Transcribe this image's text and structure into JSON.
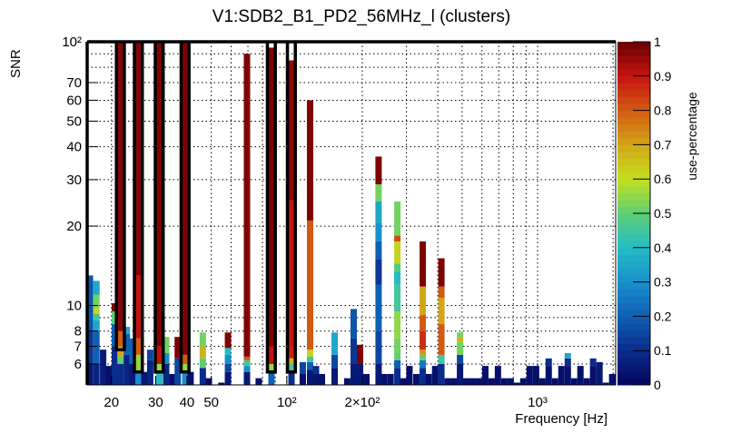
{
  "chart_data": {
    "type": "heatmap",
    "title": "V1:SDB2_B1_PD2_56MHz_l (clusters)",
    "xlabel": "Frequency [Hz]",
    "ylabel": "SNR",
    "zlabel": "use-percentage",
    "xscale": "log",
    "yscale": "log",
    "xlim": [
      16,
      2048
    ],
    "ylim": [
      5,
      100
    ],
    "zlim": [
      0,
      1
    ],
    "grid": true,
    "bin_width_decades": 0.0243,
    "x_ticks": [
      {
        "v": 20,
        "label": "20"
      },
      {
        "v": 30,
        "label": "30"
      },
      {
        "v": 40,
        "label": "40"
      },
      {
        "v": 50,
        "label": "50"
      },
      {
        "v": 100,
        "label": "10²"
      },
      {
        "v": 200,
        "label": "2×10²"
      },
      {
        "v": 1000,
        "label": "10³"
      }
    ],
    "x_grid": [
      20,
      30,
      40,
      50,
      60,
      70,
      80,
      90,
      100,
      200,
      300,
      400,
      500,
      600,
      700,
      800,
      900,
      1000,
      2000
    ],
    "y_ticks": [
      {
        "v": 100,
        "label": "10²"
      },
      {
        "v": 70,
        "label": "70"
      },
      {
        "v": 60,
        "label": "60"
      },
      {
        "v": 50,
        "label": "50"
      },
      {
        "v": 40,
        "label": "40"
      },
      {
        "v": 30,
        "label": "30"
      },
      {
        "v": 20,
        "label": "20"
      },
      {
        "v": 10,
        "label": "10"
      },
      {
        "v": 8,
        "label": "8"
      },
      {
        "v": 7,
        "label": "7"
      },
      {
        "v": 6,
        "label": "6"
      }
    ],
    "y_grid": [
      6,
      7,
      8,
      9,
      10,
      20,
      30,
      40,
      50,
      60,
      70,
      80,
      90
    ],
    "z_ticks": [
      {
        "v": 0,
        "label": "0"
      },
      {
        "v": 0.1,
        "label": "0.1"
      },
      {
        "v": 0.2,
        "label": "0.2"
      },
      {
        "v": 0.3,
        "label": "0.3"
      },
      {
        "v": 0.4,
        "label": "0.4"
      },
      {
        "v": 0.5,
        "label": "0.5"
      },
      {
        "v": 0.6,
        "label": "0.6"
      },
      {
        "v": 0.7,
        "label": "0.7"
      },
      {
        "v": 0.8,
        "label": "0.8"
      },
      {
        "v": 0.9,
        "label": "0.9"
      },
      {
        "v": 1,
        "label": "1"
      }
    ],
    "palette": [
      "#04045e",
      "#0a2c8c",
      "#0f5fb4",
      "#1890cc",
      "#25bcc6",
      "#5dcf73",
      "#c4e01e",
      "#d2a618",
      "#d35a12",
      "#c41410",
      "#6a0000"
    ],
    "columns": [
      {
        "f": 16.4,
        "segs": [
          [
            6,
            0.05
          ],
          [
            8,
            0.12
          ],
          [
            13,
            0.18
          ]
        ]
      },
      {
        "f": 17.4,
        "segs": [
          [
            6,
            0.08
          ],
          [
            8,
            0.2
          ],
          [
            8.8,
            0.35
          ],
          [
            9.3,
            0.45
          ],
          [
            9.8,
            0.62
          ],
          [
            11,
            0.52
          ],
          [
            12.4,
            0.35
          ]
        ]
      },
      {
        "f": 18.5,
        "segs": [
          [
            6.8,
            0.06
          ]
        ]
      },
      {
        "f": 19.5,
        "segs": [
          [
            5.9,
            0.03
          ]
        ]
      },
      {
        "f": 20.6,
        "segs": [
          [
            7,
            0.1
          ],
          [
            8.5,
            0.2
          ],
          [
            9.5,
            0.5
          ],
          [
            10.2,
            0.98
          ]
        ]
      },
      {
        "f": 21.7,
        "segs": [
          [
            6,
            0.1
          ],
          [
            6.4,
            0.5
          ],
          [
            7,
            0.7
          ],
          [
            8,
            0.8
          ],
          [
            100,
            0.97
          ]
        ]
      },
      {
        "f": 23.0,
        "segs": [
          [
            6.5,
            0.08
          ],
          [
            7.8,
            0.2
          ],
          [
            8.3,
            0.35
          ]
        ]
      },
      {
        "f": 24.2,
        "segs": [
          [
            6,
            0.05
          ],
          [
            7.5,
            0.2
          ]
        ]
      },
      {
        "f": 25.6,
        "segs": [
          [
            5.6,
            0.3
          ],
          [
            6.5,
            0.55
          ],
          [
            7.5,
            0.8
          ],
          [
            13,
            0.9
          ],
          [
            100,
            0.97
          ]
        ]
      },
      {
        "f": 27.0,
        "segs": [
          [
            5.6,
            0.05
          ]
        ]
      },
      {
        "f": 28.5,
        "segs": [
          [
            6.2,
            0.08
          ],
          [
            6.8,
            0.15
          ]
        ]
      },
      {
        "f": 31.0,
        "segs": [
          [
            5.6,
            0.4
          ],
          [
            6,
            0.55
          ],
          [
            7,
            0.9
          ],
          [
            100,
            0.98
          ]
        ]
      },
      {
        "f": 33.0,
        "segs": [
          [
            6,
            0.08
          ],
          [
            6.6,
            0.3
          ],
          [
            7.6,
            0.52
          ]
        ]
      },
      {
        "f": 35.0,
        "segs": [
          [
            5.5,
            0.03
          ]
        ]
      },
      {
        "f": 36.7,
        "segs": [
          [
            6.3,
            0.15
          ],
          [
            7.6,
            0.98
          ]
        ]
      },
      {
        "f": 39.3,
        "segs": [
          [
            5.6,
            0.3
          ],
          [
            6,
            0.55
          ],
          [
            6.5,
            0.8
          ],
          [
            100,
            0.98
          ]
        ]
      },
      {
        "f": 41.3,
        "segs": [
          [
            5.6,
            0.03
          ]
        ]
      },
      {
        "f": 46.2,
        "segs": [
          [
            5.8,
            0.1
          ],
          [
            6.3,
            0.5
          ],
          [
            7,
            0.68
          ],
          [
            7.9,
            0.52
          ]
        ]
      },
      {
        "f": 48.8,
        "segs": [
          [
            5.3,
            0.03
          ]
        ]
      },
      {
        "f": 54.8,
        "segs": [
          [
            5.1,
            0.03
          ]
        ]
      },
      {
        "f": 58.2,
        "segs": [
          [
            5.6,
            0.05
          ],
          [
            6,
            0.15
          ],
          [
            6.5,
            0.3
          ],
          [
            6.9,
            0.4
          ],
          [
            7.9,
            0.98
          ]
        ]
      },
      {
        "f": 69.3,
        "segs": [
          [
            5.6,
            0.05
          ],
          [
            5.9,
            0.3
          ],
          [
            6.2,
            0.45
          ],
          [
            6.4,
            0.8
          ],
          [
            90,
            0.98
          ]
        ]
      },
      {
        "f": 77.2,
        "segs": [
          [
            5.3,
            0.03
          ]
        ]
      },
      {
        "f": 86.8,
        "segs": [
          [
            5.6,
            0.2
          ],
          [
            6,
            0.55
          ],
          [
            7,
            0.9
          ],
          [
            95,
            0.98
          ]
        ]
      },
      {
        "f": 104.3,
        "segs": [
          [
            5.6,
            0.1
          ],
          [
            6,
            0.45
          ],
          [
            6.3,
            0.68
          ],
          [
            7,
            0.88
          ],
          [
            25,
            0.9
          ],
          [
            85,
            0.96
          ]
        ]
      },
      {
        "f": 115.7,
        "segs": [
          [
            5.5,
            0.03
          ],
          [
            6.1,
            0.15
          ]
        ]
      },
      {
        "f": 123.7,
        "segs": [
          [
            5.7,
            0.05
          ],
          [
            6.1,
            0.2
          ],
          [
            6.4,
            0.45
          ],
          [
            6.8,
            0.62
          ],
          [
            21,
            0.8
          ],
          [
            60,
            0.98
          ]
        ]
      },
      {
        "f": 130.6,
        "segs": [
          [
            5.5,
            0.04
          ],
          [
            5.9,
            0.1
          ]
        ]
      },
      {
        "f": 137.9,
        "segs": [
          [
            5.5,
            0.03
          ]
        ]
      },
      {
        "f": 155,
        "segs": [
          [
            5.8,
            0.05
          ],
          [
            6.5,
            0.15
          ],
          [
            7.9,
            0.35
          ]
        ]
      },
      {
        "f": 174,
        "segs": [
          [
            5.3,
            0.03
          ]
        ]
      },
      {
        "f": 184.6,
        "segs": [
          [
            6,
            0.05
          ],
          [
            7.5,
            0.12
          ],
          [
            9.7,
            0.18
          ]
        ]
      },
      {
        "f": 195.7,
        "segs": [
          [
            6,
            0.05
          ],
          [
            7.1,
            0.98
          ]
        ]
      },
      {
        "f": 207.5,
        "segs": [
          [
            5.5,
            0.03
          ]
        ]
      },
      {
        "f": 232,
        "segs": [
          [
            6,
            0.05
          ],
          [
            8,
            0.15
          ],
          [
            12,
            0.2
          ],
          [
            15,
            0.12
          ],
          [
            17.5,
            0.2
          ],
          [
            20.5,
            0.3
          ],
          [
            24.8,
            0.35
          ],
          [
            28.8,
            0.52
          ],
          [
            36.7,
            0.98
          ]
        ]
      },
      {
        "f": 244,
        "segs": [
          [
            5.5,
            0.03
          ]
        ]
      },
      {
        "f": 259,
        "segs": [
          [
            5.5,
            0.03
          ]
        ]
      },
      {
        "f": 275.6,
        "segs": [
          [
            5.8,
            0.1
          ],
          [
            6.2,
            0.2
          ],
          [
            6.6,
            0.5
          ],
          [
            7.5,
            0.52
          ],
          [
            9.5,
            0.55
          ],
          [
            12,
            0.45
          ],
          [
            13.5,
            0.4
          ],
          [
            14.4,
            0.48
          ],
          [
            17.5,
            0.62
          ],
          [
            18.4,
            0.82
          ],
          [
            24.8,
            0.52
          ]
        ]
      },
      {
        "f": 291,
        "segs": [
          [
            5.3,
            0.03
          ]
        ]
      },
      {
        "f": 308,
        "segs": [
          [
            5.9,
            0.03
          ]
        ]
      },
      {
        "f": 328,
        "segs": [
          [
            5.5,
            0.03
          ]
        ]
      },
      {
        "f": 348,
        "segs": [
          [
            5.8,
            0.1
          ],
          [
            6.2,
            0.25
          ],
          [
            6.5,
            0.5
          ],
          [
            6.8,
            0.72
          ],
          [
            8,
            0.86
          ],
          [
            9.2,
            0.8
          ],
          [
            11.8,
            0.7
          ],
          [
            17.5,
            0.98
          ]
        ]
      },
      {
        "f": 367.5,
        "segs": [
          [
            5.5,
            0.03
          ]
        ]
      },
      {
        "f": 390,
        "segs": [
          [
            5.9,
            0.03
          ]
        ]
      },
      {
        "f": 413,
        "segs": [
          [
            6,
            0.1
          ],
          [
            6.5,
            0.45
          ],
          [
            8.5,
            0.8
          ],
          [
            10.7,
            0.7
          ],
          [
            11.8,
            0.8
          ],
          [
            15.1,
            0.98
          ]
        ]
      },
      {
        "f": 438,
        "segs": [
          [
            5.3,
            0.03
          ]
        ]
      },
      {
        "f": 464,
        "segs": [
          [
            5.3,
            0.03
          ]
        ]
      },
      {
        "f": 490,
        "segs": [
          [
            6,
            0.05
          ],
          [
            6.5,
            0.15
          ],
          [
            7.3,
            0.52
          ],
          [
            7.6,
            0.68
          ],
          [
            7.9,
            0.52
          ]
        ]
      },
      {
        "f": 519,
        "segs": [
          [
            5.3,
            0.03
          ]
        ]
      },
      {
        "f": 550,
        "segs": [
          [
            5.3,
            0.03
          ]
        ]
      },
      {
        "f": 583,
        "segs": [
          [
            5.3,
            0.03
          ]
        ]
      },
      {
        "f": 618,
        "segs": [
          [
            5.9,
            0.03
          ]
        ]
      },
      {
        "f": 655,
        "segs": [
          [
            5.3,
            0.03
          ]
        ]
      },
      {
        "f": 694,
        "segs": [
          [
            5.9,
            0.03
          ]
        ]
      },
      {
        "f": 736,
        "segs": [
          [
            5.3,
            0.03
          ]
        ]
      },
      {
        "f": 780,
        "segs": [
          [
            5.3,
            0.03
          ]
        ]
      },
      {
        "f": 827,
        "segs": [
          [
            5.1,
            0.03
          ]
        ]
      },
      {
        "f": 876,
        "segs": [
          [
            5.3,
            0.03
          ]
        ]
      },
      {
        "f": 929,
        "segs": [
          [
            5.9,
            0.03
          ]
        ]
      },
      {
        "f": 985,
        "segs": [
          [
            5.9,
            0.03
          ]
        ]
      },
      {
        "f": 1044,
        "segs": [
          [
            5.3,
            0.03
          ]
        ]
      },
      {
        "f": 1106,
        "segs": [
          [
            5.9,
            0.03
          ],
          [
            6.3,
            0.1
          ]
        ]
      },
      {
        "f": 1173,
        "segs": [
          [
            5.3,
            0.03
          ]
        ]
      },
      {
        "f": 1243,
        "segs": [
          [
            5.9,
            0.03
          ]
        ]
      },
      {
        "f": 1318,
        "segs": [
          [
            5.9,
            0.03
          ],
          [
            6.3,
            0.1
          ],
          [
            6.6,
            0.35
          ]
        ]
      },
      {
        "f": 1397,
        "segs": [
          [
            5.3,
            0.03
          ]
        ]
      },
      {
        "f": 1480,
        "segs": [
          [
            5.9,
            0.03
          ]
        ]
      },
      {
        "f": 1569,
        "segs": [
          [
            5.3,
            0.03
          ]
        ]
      },
      {
        "f": 1663,
        "segs": [
          [
            5.9,
            0.03
          ],
          [
            6.3,
            0.1
          ]
        ]
      },
      {
        "f": 1763,
        "segs": [
          [
            6.1,
            0.05
          ]
        ]
      },
      {
        "f": 1869,
        "segs": [
          [
            5.1,
            0.03
          ]
        ]
      },
      {
        "f": 1981,
        "segs": [
          [
            5.5,
            0.03
          ]
        ]
      }
    ],
    "contour_columns": [
      {
        "f": 21.7,
        "snr_low": 6.8
      },
      {
        "f": 25.6,
        "snr_low": 5.6
      },
      {
        "f": 31.0,
        "snr_low": 5.6
      },
      {
        "f": 39.3,
        "snr_low": 5.6
      },
      {
        "f": 86.8,
        "snr_low": 5.6
      },
      {
        "f": 104.3,
        "snr_low": 5.6
      }
    ]
  }
}
